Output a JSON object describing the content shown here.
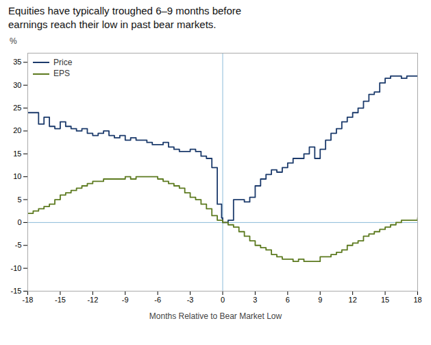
{
  "chart_data": {
    "type": "line",
    "title": "Equities have typically troughed 6–9 months before\nearnings reach their low in past bear markets.",
    "xlabel": "Months Relative to Bear Market Low",
    "ylabel": "%",
    "line_style": "steps-post",
    "legend": "upper left",
    "grid": false,
    "xlim": [
      -18,
      18
    ],
    "ylim": [
      -15,
      37
    ],
    "xticks": [
      -18,
      -15,
      -12,
      -9,
      -6,
      -3,
      0,
      3,
      6,
      9,
      12,
      15,
      18
    ],
    "yticks": [
      -15,
      -10,
      -5,
      0,
      5,
      10,
      15,
      20,
      25,
      30,
      35
    ],
    "hlines": [
      {
        "value": 0,
        "color": "#8bbbd9"
      }
    ],
    "vlines": [
      {
        "value": 0,
        "color": "#8bbbd9"
      }
    ],
    "series": [
      {
        "name": "Price",
        "color": "#1b3a6b",
        "x": [
          -18,
          -17,
          -16.5,
          -16,
          -15.5,
          -15,
          -14.5,
          -14,
          -13.5,
          -13,
          -12.5,
          -12,
          -11.5,
          -11,
          -10.5,
          -10,
          -9.5,
          -9,
          -8.5,
          -8,
          -7.5,
          -7,
          -6.5,
          -6,
          -5.5,
          -5,
          -4.5,
          -4,
          -3.5,
          -3,
          -2.5,
          -2,
          -1.5,
          -1,
          -0.5,
          -0.1,
          0,
          0.5,
          1,
          1.5,
          2,
          2.5,
          3,
          3.5,
          4,
          4.5,
          5,
          5.5,
          6,
          6.5,
          7,
          7.5,
          8,
          8.5,
          9,
          9.5,
          10,
          10.5,
          11,
          11.5,
          12,
          12.5,
          13,
          13.5,
          14,
          14.5,
          15,
          15.5,
          16,
          16.5,
          17,
          17.5,
          18
        ],
        "values": [
          24.0,
          21.5,
          23.0,
          21.0,
          20.5,
          22.0,
          21.0,
          20.5,
          20.0,
          20.5,
          19.5,
          19.0,
          19.5,
          20.0,
          19.0,
          18.5,
          19.0,
          18.0,
          18.5,
          18.0,
          18.0,
          17.5,
          17.0,
          17.0,
          17.5,
          16.5,
          16.0,
          15.5,
          15.5,
          16.0,
          15.5,
          14.5,
          14.0,
          12.0,
          4.0,
          1.0,
          0.0,
          0.5,
          5.0,
          5.0,
          4.5,
          5.5,
          8.0,
          9.5,
          10.5,
          11.5,
          11.0,
          12.0,
          13.0,
          14.0,
          14.0,
          15.0,
          16.5,
          14.0,
          16.0,
          18.0,
          19.5,
          20.5,
          22.0,
          23.0,
          24.0,
          25.0,
          26.5,
          28.0,
          28.5,
          30.5,
          31.5,
          32.0,
          32.0,
          31.5,
          32.0,
          32.0,
          32.0
        ]
      },
      {
        "name": "EPS",
        "color": "#5c7a1f",
        "x": [
          -18,
          -17.5,
          -17,
          -16.5,
          -16,
          -15.5,
          -15,
          -14.5,
          -14,
          -13.5,
          -13,
          -12.5,
          -12,
          -11.5,
          -11,
          -10.5,
          -10,
          -9.5,
          -9,
          -8.5,
          -8,
          -7.5,
          -7,
          -6.5,
          -6,
          -5.5,
          -5,
          -4.5,
          -4,
          -3.5,
          -3,
          -2.5,
          -2,
          -1.5,
          -1,
          -0.5,
          0,
          0.5,
          1,
          1.5,
          2,
          2.5,
          3,
          3.5,
          4,
          4.5,
          5,
          5.5,
          6,
          6.5,
          7,
          7.5,
          8,
          8.5,
          9,
          9.5,
          10,
          10.5,
          11,
          11.5,
          12,
          12.5,
          13,
          13.5,
          14,
          14.5,
          15,
          15.5,
          16,
          16.5,
          17,
          17.5,
          18
        ],
        "values": [
          2.0,
          2.5,
          3.0,
          3.5,
          4.0,
          5.0,
          6.0,
          6.5,
          7.0,
          7.5,
          8.0,
          8.5,
          9.0,
          9.0,
          9.5,
          9.5,
          9.5,
          9.5,
          10.0,
          9.5,
          10.0,
          10.0,
          10.0,
          10.0,
          9.5,
          9.0,
          8.5,
          8.0,
          7.5,
          6.5,
          5.5,
          5.0,
          4.0,
          3.0,
          1.5,
          0.5,
          0.0,
          -0.5,
          -1.0,
          -2.0,
          -3.0,
          -4.0,
          -5.0,
          -5.5,
          -6.0,
          -7.0,
          -7.5,
          -8.0,
          -8.0,
          -8.5,
          -8.0,
          -8.5,
          -8.5,
          -8.5,
          -7.5,
          -7.5,
          -7.0,
          -6.5,
          -6.0,
          -5.0,
          -4.5,
          -4.0,
          -3.0,
          -2.5,
          -2.0,
          -1.5,
          -1.0,
          -0.5,
          0.0,
          0.5,
          0.5,
          0.5,
          1.0
        ]
      }
    ]
  }
}
